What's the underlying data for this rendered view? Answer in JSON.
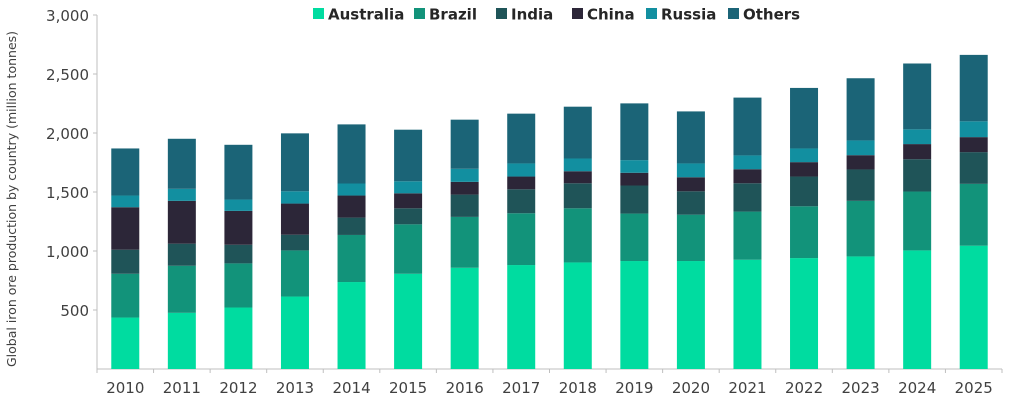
{
  "chart_data": {
    "type": "bar",
    "stacked": true,
    "title": "",
    "xlabel": "",
    "ylabel": "Global iron ore production by country (million tonnes)",
    "ylim": [
      0,
      3000
    ],
    "yticks": [
      500,
      1000,
      1500,
      2000,
      2500,
      3000
    ],
    "ytick_labels": [
      "500",
      "1,000",
      "1,500",
      "2,000",
      "2,500",
      "3,000"
    ],
    "grid": false,
    "legend_position": "top-center",
    "categories": [
      "2010",
      "2011",
      "2012",
      "2013",
      "2014",
      "2015",
      "2016",
      "2017",
      "2018",
      "2019",
      "2020",
      "2021",
      "2022",
      "2023",
      "2024",
      "2025"
    ],
    "series": [
      {
        "name": "Australia",
        "color": "#00DCA0",
        "values": [
          436,
          476,
          521,
          614,
          737,
          807,
          858,
          881,
          903,
          915,
          915,
          926,
          940,
          954,
          1005,
          1045
        ]
      },
      {
        "name": "Brazil",
        "color": "#12937A",
        "values": [
          371,
          399,
          374,
          391,
          399,
          419,
          431,
          439,
          459,
          402,
          393,
          408,
          439,
          471,
          499,
          524
        ]
      },
      {
        "name": "India",
        "color": "#1F5458",
        "values": [
          204,
          187,
          158,
          133,
          147,
          136,
          189,
          203,
          212,
          238,
          198,
          240,
          252,
          266,
          274,
          269
        ]
      },
      {
        "name": "China",
        "color": "#2C2638",
        "values": [
          360,
          363,
          287,
          264,
          187,
          127,
          108,
          108,
          102,
          108,
          119,
          119,
          122,
          121,
          128,
          127
        ]
      },
      {
        "name": "Russia",
        "color": "#128FA0",
        "values": [
          99,
          102,
          96,
          104,
          102,
          102,
          111,
          111,
          108,
          107,
          117,
          117,
          116,
          125,
          125,
          134
        ]
      },
      {
        "name": "Others",
        "color": "#1B6477",
        "values": [
          399,
          424,
          464,
          491,
          501,
          437,
          416,
          422,
          439,
          481,
          441,
          490,
          513,
          527,
          558,
          563
        ]
      }
    ]
  }
}
